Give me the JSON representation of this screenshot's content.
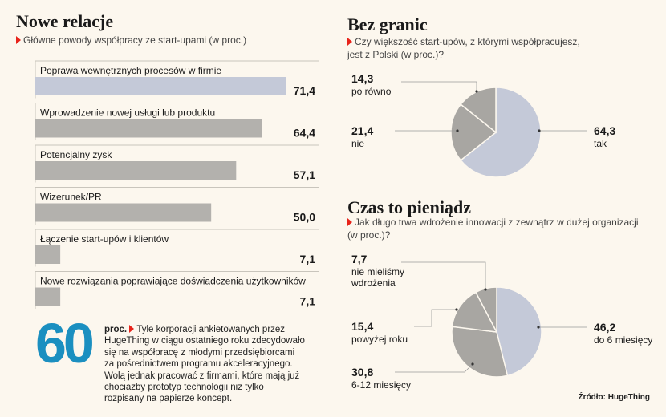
{
  "colors": {
    "background": "#fcf7ee",
    "bar_highlight": "#c4c9d8",
    "bar": "#b3b1ad",
    "pie_main": "#c4c9d8",
    "pie_other": "#a8a6a2",
    "accent_red": "#e8231a",
    "accent_blue": "#1b8fc0"
  },
  "left": {
    "title": "Nowe relacje",
    "subtitle": "Główne powody współpracy ze start-upami (w proc.)"
  },
  "top_right": {
    "title": "Bez granic",
    "subtitle_line1": "Czy większość start-upów, z którymi współpracujesz,",
    "subtitle_line2": "jest z Polski (w proc.)?"
  },
  "bottom_right": {
    "title": "Czas to pieniądz",
    "subtitle_line1": "Jak długo trwa wdrożenie innowacji z zewnątrz w dużej organizacji",
    "subtitle_line2": "(w proc.)?"
  },
  "callout": {
    "number": "60",
    "unit": "proc.",
    "text": "Tyle korporacji ankietowanych przez HugeThing w ciągu ostatniego roku zdecydowało się na współpracę z młodymi przedsiębiorcami za pośrednictwem programu akceleracyjnego. Wolą jednak pracować z firmami, które mają już chociażby prototyp technologii niż tylko rozpisany na papierze koncept."
  },
  "source": {
    "label": "Źródło:",
    "name": "HugeThing"
  },
  "chart_data": [
    {
      "type": "bar",
      "orientation": "horizontal",
      "title": "Nowe relacje",
      "categories": [
        "Poprawa wewnętrznych procesów w firmie",
        "Wprowadzenie nowej usługi lub produktu",
        "Potencjalny zysk",
        "Wizerunek/PR",
        "Łączenie start-upów i klientów",
        "Nowe rozwiązania poprawiające doświadczenia użytkowników"
      ],
      "values": [
        71.4,
        64.4,
        57.1,
        50.0,
        7.1,
        7.1
      ],
      "value_labels": [
        "71,4",
        "64,4",
        "57,1",
        "50,0",
        "7,1",
        "7,1"
      ],
      "xlim": [
        0,
        71.4
      ]
    },
    {
      "type": "pie",
      "title": "Bez granic",
      "slices": [
        {
          "label": "tak",
          "value": 64.3,
          "value_label": "64,3"
        },
        {
          "label": "nie",
          "value": 21.4,
          "value_label": "21,4"
        },
        {
          "label": "po równo",
          "value": 14.3,
          "value_label": "14,3"
        }
      ]
    },
    {
      "type": "pie",
      "title": "Czas to pieniądz",
      "slices": [
        {
          "label": "do 6 miesięcy",
          "value": 46.2,
          "value_label": "46,2"
        },
        {
          "label": "6-12 miesięcy",
          "value": 30.8,
          "value_label": "30,8"
        },
        {
          "label": "powyżej roku",
          "value": 15.4,
          "value_label": "15,4"
        },
        {
          "label": "nie mieliśmy wdrożenia",
          "value": 7.7,
          "value_label": "7,7"
        }
      ]
    }
  ]
}
